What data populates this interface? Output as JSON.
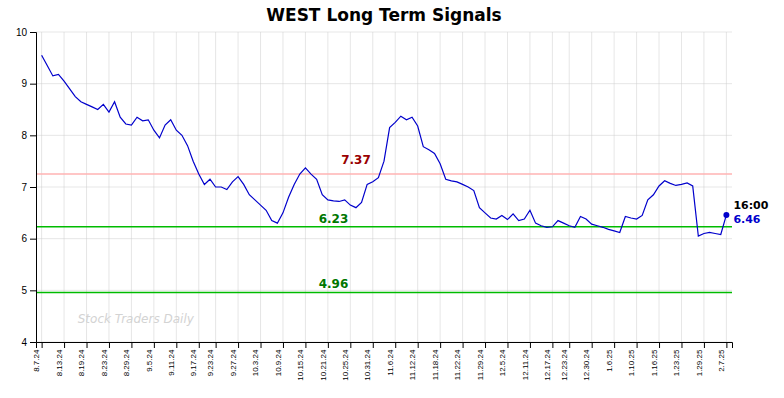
{
  "chart_data": {
    "type": "line",
    "title": "WEST Long Term Signals",
    "watermark": "Stock Traders Daily",
    "last_label": "16:00",
    "background_color": "#FFFFFF",
    "grid": true,
    "grid_color": "#CCCCCC",
    "categories": [
      "8.7.24",
      null,
      null,
      null,
      "8.13.24",
      null,
      null,
      null,
      "8.19.24",
      null,
      null,
      null,
      "8.23.24",
      null,
      null,
      null,
      "8.29.24",
      null,
      null,
      null,
      "9.5.24",
      null,
      null,
      null,
      "9.11.24",
      null,
      null,
      null,
      "9.17.24",
      null,
      null,
      "9.23.24",
      null,
      null,
      null,
      "9.27.24",
      null,
      null,
      null,
      "10.3.24",
      null,
      null,
      null,
      "10.9.24",
      null,
      null,
      null,
      "10.15.24",
      null,
      null,
      null,
      "10.21.24",
      null,
      null,
      null,
      "10.25.24",
      null,
      null,
      null,
      "10.31.24",
      null,
      null,
      null,
      "11.6.24",
      null,
      null,
      null,
      "11.12.24",
      null,
      null,
      null,
      "11.18.24",
      null,
      null,
      null,
      "11.22.24",
      null,
      null,
      null,
      "11.29.24",
      null,
      null,
      null,
      "12.5.24",
      null,
      null,
      null,
      "12.11.24",
      null,
      null,
      null,
      "12.17.24",
      null,
      null,
      "12.23.24",
      null,
      null,
      null,
      "12.30.24",
      null,
      null,
      null,
      "1.6.25",
      null,
      null,
      null,
      "1.10.25",
      null,
      null,
      null,
      "1.16.25",
      null,
      null,
      null,
      "1.23.25",
      null,
      null,
      null,
      "1.29.25",
      null,
      null,
      null,
      "2.7.25"
    ],
    "series": [
      {
        "color": "#0000CC",
        "marker": "last",
        "values": [
          9.55,
          9.35,
          9.15,
          9.18,
          9.05,
          8.9,
          8.75,
          8.65,
          8.6,
          8.55,
          8.5,
          8.6,
          8.45,
          8.65,
          8.35,
          8.22,
          8.2,
          8.35,
          8.28,
          8.3,
          8.1,
          7.95,
          8.2,
          8.3,
          8.1,
          8.0,
          7.8,
          7.5,
          7.25,
          7.05,
          7.15,
          7.0,
          7.0,
          6.95,
          7.1,
          7.2,
          7.05,
          6.85,
          6.75,
          6.65,
          6.55,
          6.35,
          6.3,
          6.5,
          6.8,
          7.05,
          7.25,
          7.37,
          7.25,
          7.15,
          6.85,
          6.75,
          6.73,
          6.72,
          6.75,
          6.65,
          6.6,
          6.7,
          7.05,
          7.1,
          7.18,
          7.5,
          8.15,
          8.25,
          8.37,
          8.3,
          8.35,
          8.18,
          7.78,
          7.72,
          7.65,
          7.45,
          7.15,
          7.12,
          7.1,
          7.05,
          7.0,
          6.93,
          6.6,
          6.5,
          6.4,
          6.38,
          6.45,
          6.37,
          6.48,
          6.35,
          6.38,
          6.55,
          6.3,
          6.25,
          6.22,
          6.23,
          6.35,
          6.3,
          6.25,
          6.22,
          6.43,
          6.38,
          6.28,
          6.25,
          6.22,
          6.18,
          6.15,
          6.12,
          6.43,
          6.4,
          6.38,
          6.45,
          6.75,
          6.85,
          7.02,
          7.12,
          7.07,
          7.03,
          7.05,
          7.08,
          7.02,
          6.05,
          6.1,
          6.12,
          6.1,
          6.08,
          6.46
        ]
      }
    ],
    "hlines": [
      {
        "value": 7.25,
        "color": "#FFB3B3"
      },
      {
        "value": 6.23,
        "color": "#00BB00"
      },
      {
        "value": 4.96,
        "color": "#00BB00"
      }
    ],
    "annotations": [
      {
        "text": "7.37",
        "x": 56,
        "y": 7.37,
        "color": "#990000"
      },
      {
        "text": "6.23",
        "x": 52,
        "y": 6.23,
        "color": "#007700"
      },
      {
        "text": "4.96",
        "x": 52,
        "y": 4.96,
        "color": "#007700"
      }
    ],
    "ylim": [
      4.0,
      10.0
    ],
    "yticks": [
      4,
      5,
      6,
      7,
      8,
      9,
      10
    ]
  }
}
